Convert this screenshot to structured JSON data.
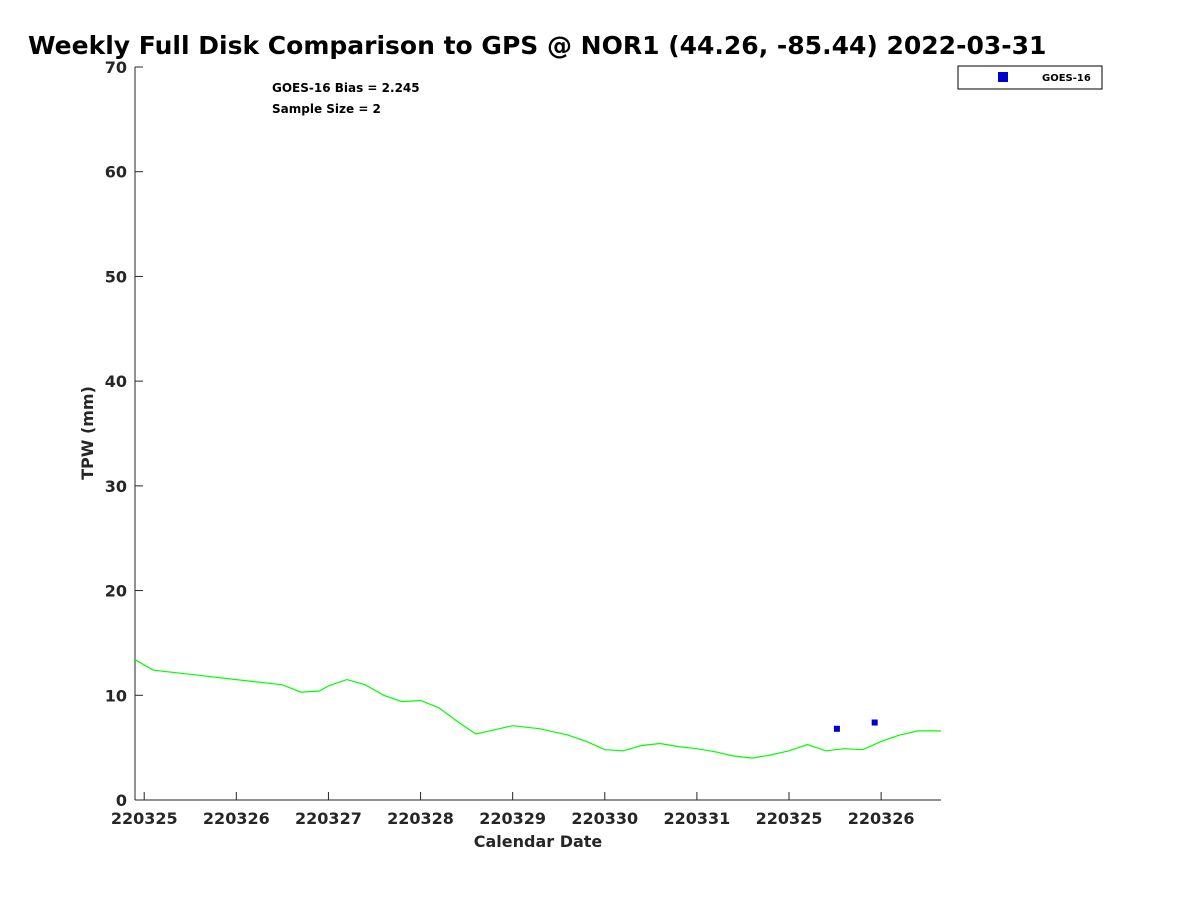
{
  "chart_data": {
    "type": "line",
    "title": "Weekly Full Disk Comparison to GPS @ NOR1 (44.26, -85.44) 2022-03-31",
    "xlabel": "Calendar Date",
    "ylabel": "TPW (mm)",
    "ylim": [
      0,
      70
    ],
    "xlim": [
      -0.1,
      8.65
    ],
    "yticks": [
      0,
      10,
      20,
      30,
      40,
      50,
      60,
      70
    ],
    "xticks": [
      {
        "pos": 0,
        "label": "220325"
      },
      {
        "pos": 1,
        "label": "220326"
      },
      {
        "pos": 2,
        "label": "220327"
      },
      {
        "pos": 3,
        "label": "220328"
      },
      {
        "pos": 4,
        "label": "220329"
      },
      {
        "pos": 5,
        "label": "220330"
      },
      {
        "pos": 6,
        "label": "220331"
      },
      {
        "pos": 7,
        "label": "220325"
      },
      {
        "pos": 8,
        "label": "220326"
      }
    ],
    "grid": false,
    "legend_position": "top-right",
    "annotations": [
      "GOES-16 Bias = 2.245",
      "Sample Size = 2"
    ],
    "series": [
      {
        "kind": "line",
        "color": "#00ff00",
        "x": [
          -0.1,
          0.1,
          0.5,
          1.0,
          1.5,
          1.7,
          1.9,
          2.0,
          2.2,
          2.4,
          2.6,
          2.8,
          3.0,
          3.2,
          3.4,
          3.6,
          3.85,
          4.0,
          4.3,
          4.6,
          4.8,
          5.0,
          5.2,
          5.4,
          5.6,
          5.8,
          6.0,
          6.2,
          6.4,
          6.6,
          6.8,
          7.0,
          7.2,
          7.4,
          7.6,
          7.8,
          8.0,
          8.2,
          8.4,
          8.65
        ],
        "y": [
          13.4,
          12.4,
          12.0,
          11.5,
          11.0,
          10.3,
          10.4,
          10.9,
          11.5,
          11.0,
          10.0,
          9.4,
          9.5,
          8.8,
          7.5,
          6.3,
          6.8,
          7.1,
          6.8,
          6.2,
          5.6,
          4.8,
          4.7,
          5.2,
          5.4,
          5.1,
          4.9,
          4.6,
          4.2,
          4.0,
          4.3,
          4.7,
          5.3,
          4.7,
          4.9,
          4.8,
          5.6,
          6.2,
          6.6,
          6.6
        ]
      },
      {
        "kind": "scatter",
        "name": "GOES-16",
        "color": "#0000cc",
        "x": [
          7.52,
          7.93
        ],
        "y": [
          6.8,
          7.4
        ]
      }
    ]
  }
}
